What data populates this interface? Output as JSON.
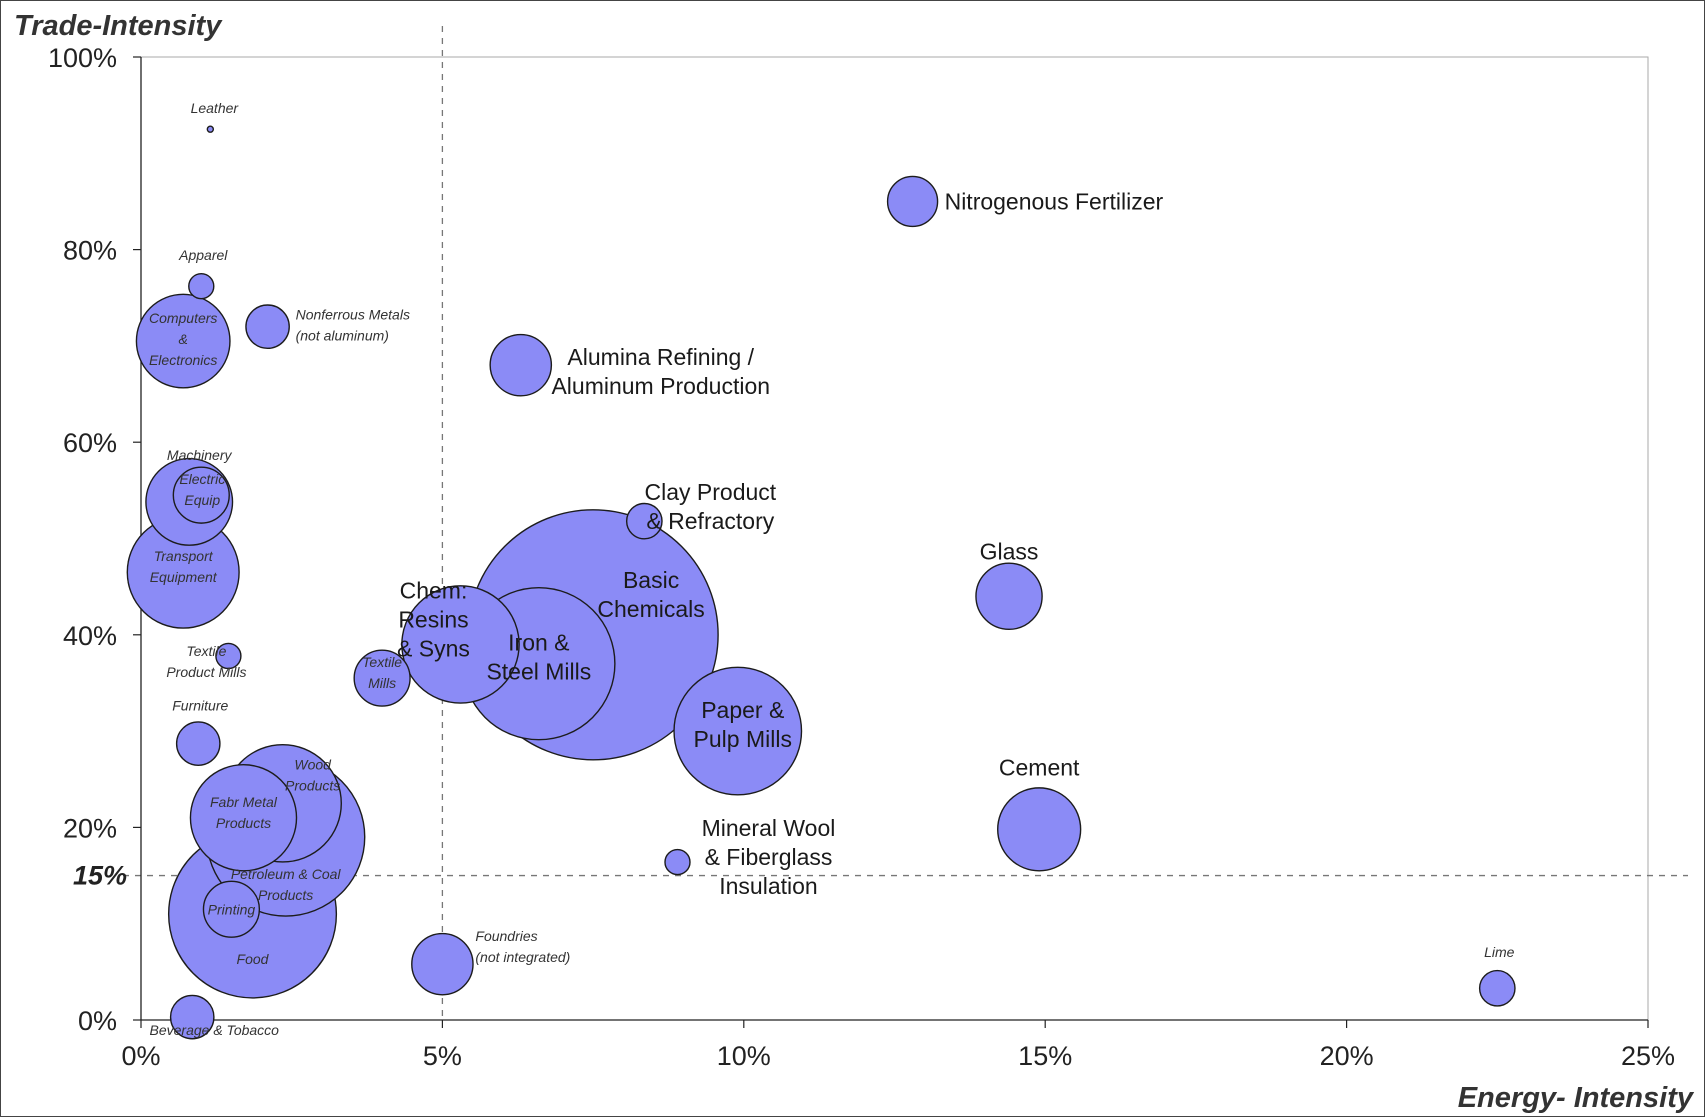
{
  "chart_data": {
    "type": "scatter",
    "subtype": "bubble",
    "ylabel": "Trade-Intensity",
    "xlabel": "Energy- Intensity",
    "xlim": [
      0,
      25
    ],
    "ylim": [
      0,
      100
    ],
    "x_ticks": [
      "0%",
      "5%",
      "10%",
      "15%",
      "20%",
      "25%"
    ],
    "y_ticks": [
      "0%",
      "20%",
      "40%",
      "60%",
      "80%",
      "100%"
    ],
    "reference_lines": {
      "x": {
        "value": 5
      },
      "y": {
        "value": 15,
        "label": "15%"
      }
    },
    "bubble_color": "#8b8bf6",
    "grid": false,
    "series": [
      {
        "label": "Leather",
        "x": 1.15,
        "y": 92.5,
        "size": 0.1
      },
      {
        "label": "Apparel",
        "x": 1.0,
        "y": 76.2,
        "size": 1
      },
      {
        "label": "Computers & Electronics",
        "x": 0.7,
        "y": 70.5,
        "size": 14
      },
      {
        "label": "Nonferrous Metals (not aluminum)",
        "x": 2.1,
        "y": 72.0,
        "size": 3
      },
      {
        "label": "Nitrogenous Fertilizer",
        "x": 12.8,
        "y": 85.0,
        "size": 4
      },
      {
        "label": "Alumina Refining / Aluminum Production",
        "x": 6.3,
        "y": 68.0,
        "size": 6
      },
      {
        "label": "Machinery",
        "x": 0.8,
        "y": 53.8,
        "size": 12
      },
      {
        "label": "Electric Equip",
        "x": 1.0,
        "y": 54.5,
        "size": 5
      },
      {
        "label": "Transport Equipment",
        "x": 0.7,
        "y": 46.5,
        "size": 20
      },
      {
        "label": "Clay Product & Refractory",
        "x": 8.35,
        "y": 51.8,
        "size": 2
      },
      {
        "label": "Glass",
        "x": 14.4,
        "y": 44.0,
        "size": 7
      },
      {
        "label": "Basic Chemicals",
        "x": 7.5,
        "y": 40.0,
        "size": 100
      },
      {
        "label": "Chem: Resins & Syns",
        "x": 5.3,
        "y": 39.0,
        "size": 22
      },
      {
        "label": "Iron & Steel Mills",
        "x": 6.6,
        "y": 37.0,
        "size": 37
      },
      {
        "label": "Textile Product Mills",
        "x": 1.45,
        "y": 37.8,
        "size": 1
      },
      {
        "label": "Textile Mills",
        "x": 4.0,
        "y": 35.5,
        "size": 5
      },
      {
        "label": "Paper & Pulp Mills",
        "x": 9.9,
        "y": 30.0,
        "size": 26
      },
      {
        "label": "Furniture",
        "x": 0.95,
        "y": 28.7,
        "size": 3
      },
      {
        "label": "Wood Products",
        "x": 2.35,
        "y": 22.5,
        "size": 22
      },
      {
        "label": "Fabr Metal Products",
        "x": 1.7,
        "y": 21.0,
        "size": 18
      },
      {
        "label": "Petroleum & Coal Products",
        "x": 2.4,
        "y": 19.0,
        "size": 40
      },
      {
        "label": "Cement",
        "x": 14.9,
        "y": 19.8,
        "size": 11
      },
      {
        "label": "Mineral Wool & Fiberglass Insulation",
        "x": 8.9,
        "y": 16.4,
        "size": 1
      },
      {
        "label": "Food",
        "x": 1.85,
        "y": 11.0,
        "size": 45
      },
      {
        "label": "Printing",
        "x": 1.5,
        "y": 11.5,
        "size": 5
      },
      {
        "label": "Foundries (not integrated)",
        "x": 5.0,
        "y": 5.8,
        "size": 6
      },
      {
        "label": "Lime",
        "x": 22.5,
        "y": 3.3,
        "size": 2
      },
      {
        "label": "Beverage & Tobacco",
        "x": 0.85,
        "y": 0.3,
        "size": 3
      }
    ]
  }
}
